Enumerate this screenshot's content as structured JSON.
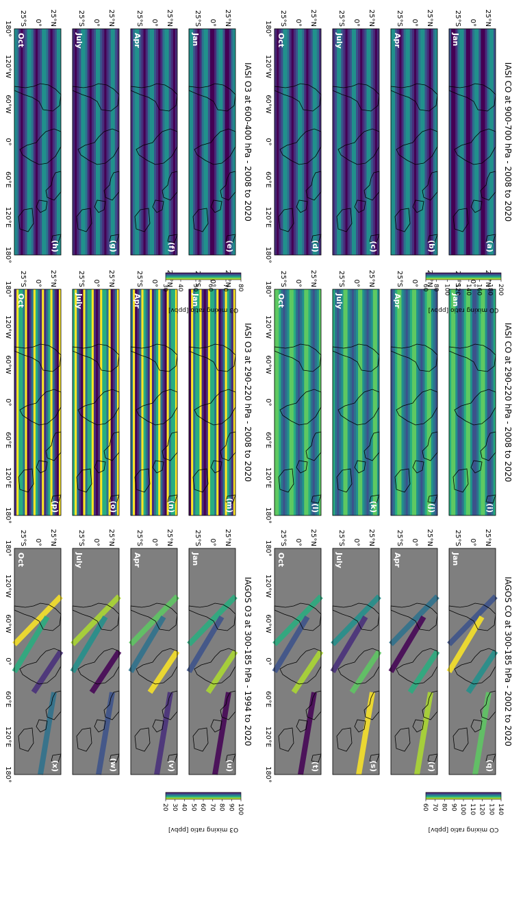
{
  "colors": {
    "map_background": "#7f7f7f",
    "viridis": [
      "#440154",
      "#472d7b",
      "#3b528b",
      "#2c728e",
      "#21918c",
      "#28ae80",
      "#5ec962",
      "#addc30",
      "#fde725"
    ]
  },
  "panel_groups": [
    {
      "id": "iasi-co-low",
      "title": "IASI CO at 900-700 hPa - 2008 to 2020",
      "letters": [
        "(a)",
        "(b)",
        "(c)",
        "(d)"
      ],
      "colorbar": {
        "label": "CO mixing ratio [ppbv]",
        "ticks": [
          "60",
          "80",
          "100",
          "120",
          "140",
          "160",
          "180",
          "200"
        ]
      }
    },
    {
      "id": "iasi-co-high",
      "title": "IASI CO at 290-220 hPa - 2008 to 2020",
      "letters": [
        "(i)",
        "(j)",
        "(k)",
        "(l)"
      ]
    },
    {
      "id": "iagos-co",
      "title": "IAGOS CO at 300-185 hPa - 2002 to 2020",
      "letters": [
        "(q)",
        "(r)",
        "(s)",
        "(t)"
      ],
      "colorbar": {
        "label": "CO mixing ratio [ppbv]",
        "ticks": [
          "60",
          "70",
          "80",
          "90",
          "100",
          "110",
          "120",
          "130",
          "140"
        ]
      }
    },
    {
      "id": "iasi-o3-low",
      "title": "IASI O3 at 600-400 hPa - 2008 to 2020",
      "letters": [
        "(e)",
        "(f)",
        "(g)",
        "(h)"
      ],
      "colorbar": {
        "label": "O3 mixing ratio [ppbv]",
        "ticks": [
          "30",
          "40",
          "50",
          "60",
          "70",
          "80"
        ]
      }
    },
    {
      "id": "iasi-o3-high",
      "title": "IASI O3 at 290-220 hPa - 2008 to 2020",
      "letters": [
        "(m)",
        "(n)",
        "(o)",
        "(p)"
      ]
    },
    {
      "id": "iagos-o3",
      "title": "IAGOS O3 at 300-185 hPa - 1994 to 2020",
      "letters": [
        "(u)",
        "(v)",
        "(w)",
        "(x)"
      ],
      "colorbar": {
        "label": "O3 mixing ratio [ppbv]",
        "ticks": [
          "20",
          "30",
          "40",
          "50",
          "60",
          "70",
          "80",
          "90",
          "100"
        ]
      }
    }
  ],
  "months": [
    "Jan",
    "Apr",
    "July",
    "Oct"
  ],
  "lon_ticks": [
    "180°",
    "120°W",
    "60°W",
    "0°",
    "60°E",
    "120°E",
    "180°"
  ],
  "lat_ticks": [
    "25°N",
    "0°",
    "25°S"
  ]
}
